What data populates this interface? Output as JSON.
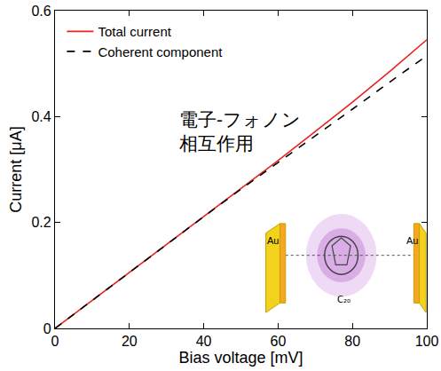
{
  "chart_data": {
    "type": "line",
    "x_label": "Bias voltage [mV]",
    "y_label": "Current [μA]",
    "x": [
      0,
      10,
      20,
      30,
      40,
      50,
      60,
      70,
      80,
      90,
      100
    ],
    "series": [
      {
        "name": "Total current",
        "color": "#e8231f",
        "line_style": "solid",
        "values": [
          0,
          0.053,
          0.106,
          0.159,
          0.212,
          0.264,
          0.317,
          0.372,
          0.427,
          0.485,
          0.545
        ]
      },
      {
        "name": "Coherent component",
        "color": "#000000",
        "line_style": "dash",
        "values": [
          0,
          0.053,
          0.106,
          0.159,
          0.211,
          0.263,
          0.313,
          0.364,
          0.414,
          0.465,
          0.515
        ]
      }
    ],
    "xlim": [
      0,
      100
    ],
    "xticks": [
      0,
      20,
      40,
      60,
      80,
      100
    ],
    "ylim": [
      0,
      0.6
    ],
    "yticks": [
      0,
      0.2,
      0.4,
      0.6
    ],
    "grid": false,
    "legend": "upper left",
    "annotations": [
      {
        "text": "電子-フォノン\n相互作用"
      }
    ],
    "inset": {
      "electrode_labels": [
        "Au",
        "Au"
      ],
      "molecule_label": "C₂₀"
    }
  }
}
